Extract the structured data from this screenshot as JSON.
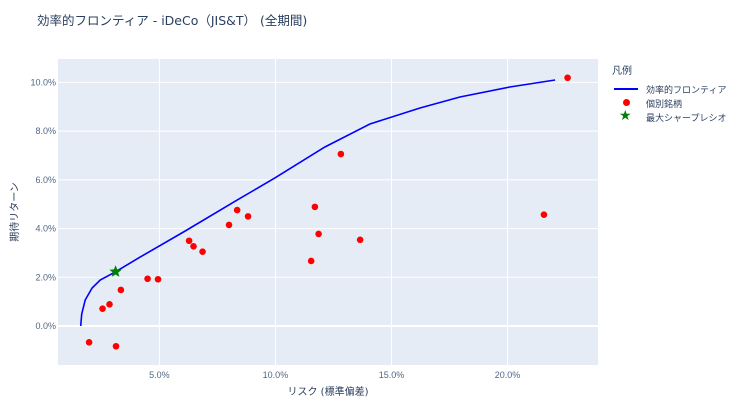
{
  "title": "効率的フロンティア - iDeCo（JIS&T） (全期間)",
  "legend": {
    "title": "凡例",
    "items": [
      {
        "label": "効率的フロンティア",
        "symbol": "line",
        "color": "#0000ff"
      },
      {
        "label": "個別銘柄",
        "symbol": "circle",
        "color": "#ff0000"
      },
      {
        "label": "最大シャープレシオ",
        "symbol": "star",
        "color": "#008000"
      }
    ]
  },
  "colors": {
    "plot_bg": "#e5ecf6",
    "grid": "#ffffff",
    "frontier": "#0000ff",
    "assets": "#ff0000",
    "max_sharpe": "#008000"
  },
  "chart_data": {
    "type": "scatter",
    "title": "効率的フロンティア - iDeCo（JIS&T） (全期間)",
    "xlabel": "リスク (標準偏差)",
    "ylabel": "期待リターン",
    "xlim": [
      0.63,
      23.9
    ],
    "ylim": [
      -1.6,
      10.96
    ],
    "x_ticks": [
      5,
      10,
      15,
      20
    ],
    "x_tick_labels": [
      "5.0%",
      "10.0%",
      "15.0%",
      "20.0%"
    ],
    "y_ticks": [
      0,
      2,
      4,
      6,
      8,
      10
    ],
    "y_tick_labels": [
      "0.0%",
      "2.0%",
      "4.0%",
      "6.0%",
      "8.0%",
      "10.0%"
    ],
    "grid": true,
    "legend_position": "right",
    "series": [
      {
        "name": "効率的フロンティア",
        "type": "line",
        "color": "#0000ff",
        "x": [
          1.61,
          1.65,
          1.8,
          2.1,
          2.45,
          3.1,
          4.17,
          6.11,
          8.35,
          9.97,
          12.13,
          14.07,
          16.23,
          17.95,
          20.1,
          22.05
        ],
        "y": [
          0.0,
          0.49,
          1.07,
          1.56,
          1.89,
          2.22,
          2.83,
          3.9,
          5.17,
          6.07,
          7.35,
          8.29,
          8.95,
          9.4,
          9.81,
          10.1
        ]
      },
      {
        "name": "個別銘柄",
        "type": "scatter",
        "color": "#ff0000",
        "x": [
          1.97,
          3.13,
          2.55,
          2.85,
          3.34,
          4.49,
          4.94,
          6.28,
          6.47,
          6.86,
          8.0,
          8.35,
          8.82,
          11.54,
          11.7,
          11.86,
          12.82,
          13.65,
          21.57,
          22.59
        ],
        "y": [
          -0.67,
          -0.83,
          0.71,
          0.89,
          1.48,
          1.94,
          1.92,
          3.5,
          3.27,
          3.05,
          4.15,
          4.76,
          4.5,
          2.67,
          4.89,
          3.78,
          7.06,
          3.54,
          4.57,
          10.19
        ]
      },
      {
        "name": "最大シャープレシオ",
        "type": "scatter",
        "marker": "star",
        "color": "#008000",
        "x": [
          3.11
        ],
        "y": [
          2.23
        ]
      }
    ]
  }
}
